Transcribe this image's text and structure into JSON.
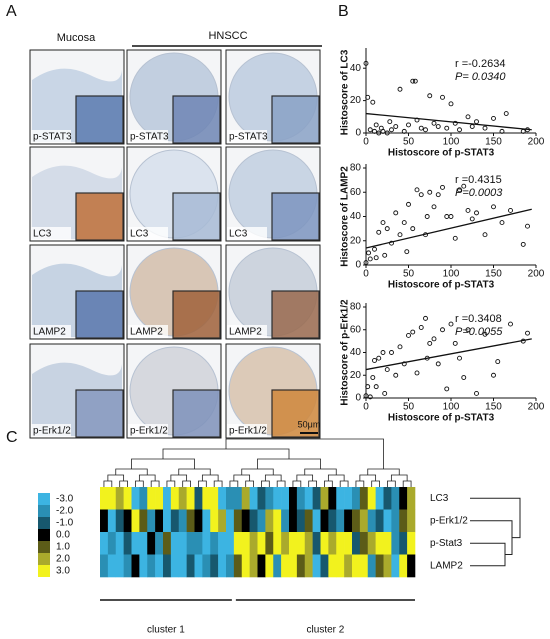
{
  "figure": {
    "panel_labels": [
      "A",
      "B",
      "C"
    ],
    "column_headers": [
      "Mucosa",
      "HNSCC"
    ],
    "image_labels": [
      [
        "p-STAT3",
        "p-STAT3",
        "p-STAT3"
      ],
      [
        "LC3",
        "LC3",
        "LC3"
      ],
      [
        "LAMP2",
        "LAMP2",
        "LAMP2"
      ],
      [
        "p-Erk1/2",
        "p-Erk1/2",
        "p-Erk1/2"
      ]
    ],
    "scale_bar": "50μm"
  },
  "chart_data": [
    {
      "type": "scatter",
      "y_label": "Histoscore of LC3",
      "x_label": "Histoscore of p-STAT3",
      "annotations": [
        "r =-0.2634",
        "P= 0.0340"
      ],
      "color": "#111111",
      "x": [
        0,
        2,
        5,
        8,
        10,
        12,
        15,
        18,
        20,
        25,
        28,
        30,
        35,
        40,
        45,
        50,
        55,
        58,
        60,
        65,
        70,
        75,
        80,
        85,
        90,
        95,
        100,
        105,
        110,
        120,
        125,
        130,
        140,
        150,
        160,
        165,
        185,
        190
      ],
      "values": [
        43,
        22,
        2,
        19,
        1,
        5,
        0,
        3,
        1,
        0,
        7,
        2,
        4,
        27,
        1,
        5,
        32,
        32,
        8,
        3,
        2,
        23,
        6,
        4,
        22,
        3,
        18,
        6,
        2,
        10,
        4,
        7,
        3,
        9,
        1,
        12,
        1,
        2
      ],
      "trend": {
        "x": [
          0,
          195
        ],
        "values": [
          12,
          2
        ]
      },
      "xlim": [
        0,
        200
      ],
      "xticks": [
        0,
        50,
        100,
        150,
        200
      ],
      "ylim": [
        0,
        50
      ],
      "yticks": [
        0,
        20,
        40
      ]
    },
    {
      "type": "scatter",
      "y_label": "Histoscore of LAMP2",
      "x_label": "Histoscore of p-STAT3",
      "annotations": [
        "r =0.4315",
        "P=0.0003"
      ],
      "color": "#111111",
      "x": [
        0,
        3,
        5,
        10,
        12,
        15,
        20,
        22,
        25,
        30,
        35,
        40,
        45,
        48,
        50,
        55,
        60,
        65,
        70,
        72,
        75,
        80,
        85,
        90,
        95,
        100,
        105,
        110,
        115,
        120,
        125,
        130,
        140,
        150,
        160,
        170,
        185,
        190
      ],
      "values": [
        2,
        10,
        5,
        13,
        6,
        27,
        35,
        8,
        30,
        18,
        43,
        25,
        35,
        11,
        50,
        30,
        62,
        58,
        25,
        40,
        60,
        48,
        58,
        64,
        40,
        40,
        22,
        62,
        65,
        45,
        38,
        43,
        25,
        48,
        35,
        45,
        17,
        32
      ],
      "trend": {
        "x": [
          0,
          195
        ],
        "values": [
          14,
          46
        ]
      },
      "xlim": [
        0,
        200
      ],
      "xticks": [
        0,
        50,
        100,
        150,
        200
      ],
      "ylim": [
        0,
        80
      ],
      "yticks": [
        0,
        20,
        40,
        60,
        80
      ]
    },
    {
      "type": "scatter",
      "y_label": "Histoscore of p-Erk1/2",
      "x_label": "Histoscore of p-STAT3",
      "annotations": [
        "r =0.3408",
        "P=0.0055"
      ],
      "color": "#111111",
      "x": [
        0,
        2,
        5,
        8,
        10,
        12,
        15,
        20,
        22,
        25,
        30,
        35,
        40,
        45,
        50,
        55,
        60,
        65,
        70,
        72,
        75,
        80,
        85,
        90,
        95,
        100,
        105,
        110,
        115,
        120,
        130,
        140,
        150,
        155,
        170,
        185,
        190
      ],
      "values": [
        2,
        10,
        1,
        18,
        33,
        10,
        35,
        40,
        4,
        25,
        40,
        20,
        45,
        30,
        55,
        58,
        22,
        62,
        70,
        35,
        48,
        52,
        30,
        60,
        8,
        65,
        48,
        35,
        18,
        60,
        4,
        56,
        20,
        32,
        65,
        50,
        57
      ],
      "trend": {
        "x": [
          0,
          195
        ],
        "values": [
          25,
          52
        ]
      },
      "xlim": [
        0,
        200
      ],
      "xticks": [
        0,
        50,
        100,
        150,
        200
      ],
      "ylim": [
        0,
        80
      ],
      "yticks": [
        0,
        20,
        40,
        60,
        80
      ]
    },
    {
      "type": "heatmap",
      "rows": [
        "LC3",
        "p-Erk1/2",
        "p-Stat3",
        "LAMP2"
      ],
      "values": [
        [
          3,
          3,
          2,
          3,
          -3,
          -2,
          3,
          3,
          -3,
          3,
          2,
          3,
          -1,
          3,
          3,
          -3,
          -2,
          -2,
          2,
          -3,
          -1,
          -2,
          -3,
          -3,
          0,
          -2,
          -3,
          -1,
          2,
          0,
          -3,
          -3,
          -2,
          1,
          3,
          -3,
          -1,
          -2,
          0,
          2
        ],
        [
          0,
          -3,
          -1,
          0,
          3,
          1,
          -2,
          0,
          -3,
          -1,
          -2,
          1,
          0,
          -3,
          3,
          2,
          -3,
          1,
          0,
          -1,
          -2,
          2,
          3,
          -2,
          0,
          -1,
          1,
          -3,
          0,
          -1,
          -2,
          0,
          1,
          2,
          -2,
          -1,
          -3,
          -2,
          1,
          2
        ],
        [
          -3,
          -2,
          -3,
          -1,
          -3,
          -3,
          0,
          -2,
          1,
          -3,
          -3,
          -2,
          -2,
          -3,
          -2,
          -3,
          -3,
          3,
          3,
          2,
          3,
          1,
          3,
          2,
          3,
          3,
          2,
          -1,
          3,
          2,
          3,
          3,
          -1,
          1,
          2,
          3,
          3,
          -2,
          -1,
          3
        ],
        [
          -2,
          -3,
          -3,
          -2,
          0,
          -3,
          -2,
          -3,
          -1,
          -3,
          -3,
          -1,
          -3,
          -2,
          -1,
          -3,
          -2,
          1,
          3,
          2,
          0,
          3,
          -2,
          3,
          3,
          1,
          2,
          -3,
          -1,
          3,
          3,
          2,
          3,
          3,
          -2,
          1,
          2,
          -3,
          3,
          0
        ]
      ],
      "colorbar": {
        "ticks": [
          {
            "value": -3,
            "label": "-3.0"
          },
          {
            "value": -2,
            "label": "-2.0"
          },
          {
            "value": -1,
            "label": "-1.0"
          },
          {
            "value": 0,
            "label": "0.0"
          },
          {
            "value": 1,
            "label": "1.0"
          },
          {
            "value": 2,
            "label": "2.0"
          },
          {
            "value": 3,
            "label": "3.0"
          }
        ],
        "colors": [
          "#3cb4e2",
          "#2a8fb4",
          "#17586e",
          "#000000",
          "#5c5c18",
          "#aaaa2c",
          "#f2f21e"
        ]
      },
      "clusters": [
        "cluster 1",
        "cluster 2"
      ]
    }
  ]
}
